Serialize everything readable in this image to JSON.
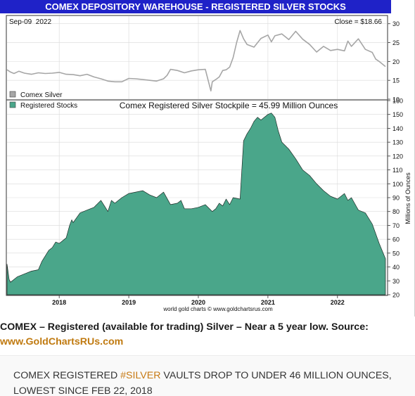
{
  "chart_data": [
    {
      "type": "line",
      "title": "COMEX DEPOSITORY WAREHOUSE - REGISTERED SILVER STOCKS",
      "date_label": "Sep-09  2022",
      "close_label": "Close = $18.66",
      "legend": [
        "Comex Silver"
      ],
      "legend_placement": "bottom-left",
      "ylim": [
        10,
        32
      ],
      "yticks": [
        10,
        15,
        20,
        25,
        30
      ],
      "series": [
        {
          "name": "Comex Silver",
          "color": "#a6a6a6",
          "x": [
            2017.25,
            2017.3,
            2017.35,
            2017.42,
            2017.5,
            2017.6,
            2017.7,
            2017.8,
            2017.9,
            2018.0,
            2018.1,
            2018.2,
            2018.3,
            2018.4,
            2018.5,
            2018.6,
            2018.7,
            2018.8,
            2018.9,
            2019.0,
            2019.1,
            2019.2,
            2019.3,
            2019.4,
            2019.5,
            2019.55,
            2019.6,
            2019.7,
            2019.8,
            2019.9,
            2020.0,
            2020.1,
            2020.18,
            2020.2,
            2020.25,
            2020.3,
            2020.35,
            2020.4,
            2020.45,
            2020.5,
            2020.55,
            2020.6,
            2020.65,
            2020.7,
            2020.8,
            2020.9,
            2021.0,
            2021.05,
            2021.1,
            2021.2,
            2021.3,
            2021.4,
            2021.5,
            2021.6,
            2021.7,
            2021.8,
            2021.9,
            2022.0,
            2022.1,
            2022.15,
            2022.2,
            2022.3,
            2022.4,
            2022.5,
            2022.55,
            2022.6,
            2022.69
          ],
          "values": [
            17.8,
            17.2,
            16.8,
            17.4,
            16.9,
            16.6,
            17.0,
            16.8,
            16.9,
            17.1,
            16.6,
            16.5,
            16.2,
            16.6,
            15.9,
            15.4,
            14.8,
            14.6,
            14.6,
            15.5,
            15.4,
            15.2,
            15.0,
            14.8,
            15.4,
            16.3,
            17.9,
            17.6,
            17.0,
            17.5,
            17.8,
            17.9,
            12.2,
            14.6,
            15.2,
            15.9,
            17.6,
            17.8,
            18.5,
            21.0,
            25.0,
            28.2,
            26.0,
            24.5,
            23.8,
            26.1,
            27.0,
            25.2,
            26.8,
            27.3,
            25.8,
            28.0,
            25.9,
            24.5,
            22.5,
            24.0,
            22.9,
            23.2,
            22.8,
            25.4,
            24.0,
            26.0,
            23.2,
            22.4,
            20.6,
            20.0,
            18.66
          ]
        }
      ]
    },
    {
      "type": "area",
      "title": "Comex Registered Silver Stockpile = 45.99 Million Ounces",
      "ylabel": "Millions of Ounces",
      "legend": [
        "Registered Stocks"
      ],
      "legend_placement": "top-left",
      "ylim": [
        20,
        160
      ],
      "yticks": [
        20,
        30,
        40,
        50,
        60,
        70,
        80,
        90,
        100,
        110,
        120,
        130,
        140,
        150,
        160
      ],
      "xlim": [
        2017.25,
        2022.72
      ],
      "xticks": [
        "2018",
        "2019",
        "2020",
        "2021",
        "2022"
      ],
      "footer": "world gold charts © www.goldchartsrus.com",
      "series": [
        {
          "name": "Registered Stocks",
          "color": "#4aa68a",
          "x": [
            2017.25,
            2017.28,
            2017.3,
            2017.4,
            2017.5,
            2017.6,
            2017.7,
            2017.75,
            2017.85,
            2017.9,
            2017.95,
            2018.0,
            2018.1,
            2018.15,
            2018.18,
            2018.2,
            2018.3,
            2018.4,
            2018.5,
            2018.6,
            2018.65,
            2018.7,
            2018.75,
            2018.8,
            2018.9,
            2019.0,
            2019.1,
            2019.2,
            2019.3,
            2019.4,
            2019.5,
            2019.6,
            2019.7,
            2019.75,
            2019.8,
            2019.9,
            2020.0,
            2020.1,
            2020.2,
            2020.25,
            2020.3,
            2020.35,
            2020.4,
            2020.45,
            2020.48,
            2020.5,
            2020.6,
            2020.65,
            2020.7,
            2020.75,
            2020.8,
            2020.85,
            2020.9,
            2021.0,
            2021.05,
            2021.1,
            2021.15,
            2021.2,
            2021.3,
            2021.4,
            2021.5,
            2021.6,
            2021.7,
            2021.8,
            2021.9,
            2022.0,
            2022.1,
            2022.15,
            2022.2,
            2022.3,
            2022.4,
            2022.5,
            2022.6,
            2022.69
          ],
          "values": [
            42,
            31,
            29,
            33,
            35,
            37,
            38,
            44,
            52,
            54,
            58,
            57,
            61,
            70,
            74,
            72,
            79,
            81,
            83,
            88,
            84,
            80,
            88,
            86,
            90,
            93,
            94,
            95,
            92,
            90,
            94,
            85,
            86,
            88,
            82,
            82,
            83,
            85,
            80,
            82,
            86,
            84,
            89,
            85,
            88,
            90,
            89,
            131,
            136,
            140,
            145,
            148,
            146,
            150,
            151,
            148,
            138,
            130,
            125,
            118,
            110,
            106,
            100,
            95,
            91,
            89,
            93,
            88,
            90,
            81,
            79,
            71,
            57,
            45.99
          ]
        }
      ]
    }
  ],
  "caption": {
    "text": "COMEX – Registered (available for trading) Silver – Near a 5 year low. Source:",
    "source": "www.GoldChartsRUs.com"
  },
  "quote": {
    "before": "COMEX REGISTERED ",
    "hashtag": "#SILVER",
    "after": " VAULTS DROP TO UNDER 46 MILLION OUNCES, LOWEST SINCE FEB 22, 2018"
  }
}
